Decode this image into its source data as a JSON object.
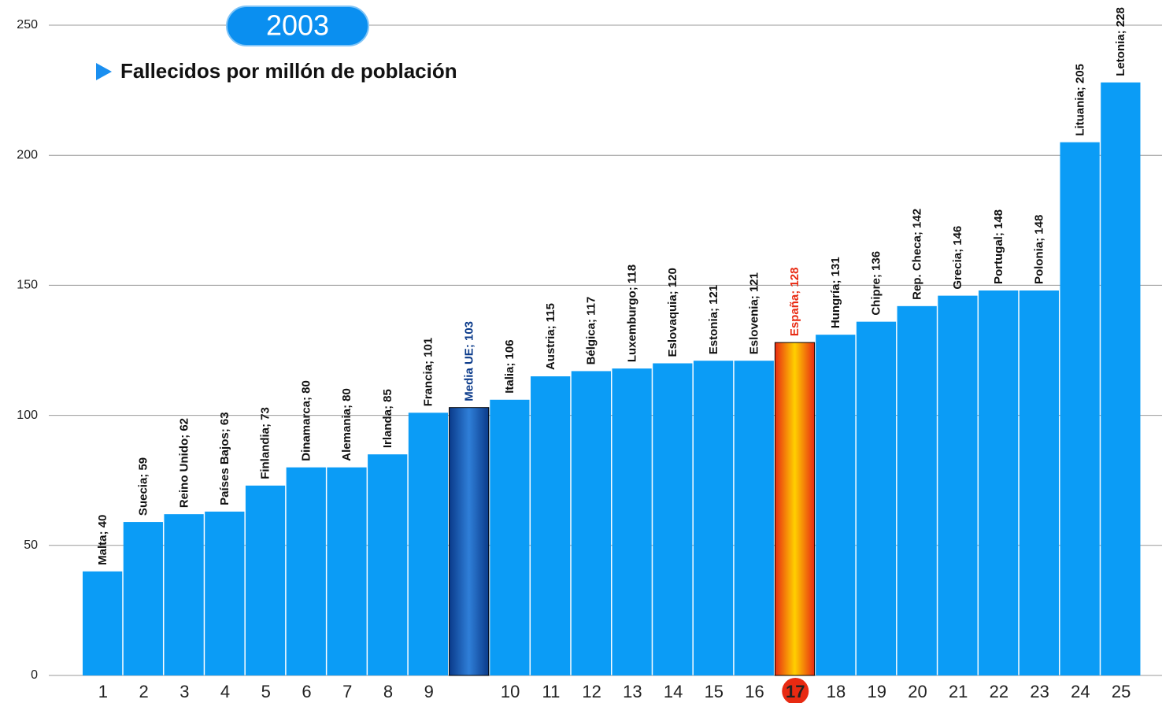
{
  "chart_data": {
    "type": "bar",
    "title": "2003",
    "subtitle": "Fallecidos por millón de población",
    "categories": [
      "1",
      "2",
      "3",
      "4",
      "5",
      "6",
      "7",
      "8",
      "9",
      null,
      "10",
      "11",
      "12",
      "13",
      "14",
      "15",
      "16",
      "17",
      "18",
      "19",
      "20",
      "21",
      "22",
      "23",
      "24",
      "25"
    ],
    "values": [
      40,
      59,
      62,
      63,
      73,
      80,
      80,
      85,
      101,
      103,
      106,
      115,
      117,
      118,
      120,
      121,
      121,
      128,
      131,
      136,
      142,
      146,
      148,
      148,
      205,
      228
    ],
    "value_labels": [
      "Malta; 40",
      "Suecia; 59",
      "Reino Unido; 62",
      "Países Bajos; 63",
      "Finlandia; 73",
      "Dinamarca; 80",
      "Alemania; 80",
      "Irlanda; 85",
      "Francia; 101",
      "Media UE; 103",
      "Italia; 106",
      "Austria; 115",
      "Bélgica; 117",
      "Luxemburgo; 118",
      "Eslovaquia; 120",
      "Estonia; 121",
      "Eslovenia; 121",
      "España; 128",
      "Hungría; 131",
      "Chipre; 136",
      "Rep. Checa; 142",
      "Grecia; 146",
      "Portugal; 148",
      "Polonia; 148",
      "Lituania; 205",
      "Letonia; 228"
    ],
    "color": "#0b9cf6",
    "colors": [
      "#0b9cf6",
      "#0b9cf6",
      "#0b9cf6",
      "#0b9cf6",
      "#0b9cf6",
      "#0b9cf6",
      "#0b9cf6",
      "#0b9cf6",
      "#0b9cf6",
      "#0a3a8a",
      "#0b9cf6",
      "#0b9cf6",
      "#0b9cf6",
      "#0b9cf6",
      "#0b9cf6",
      "#0b9cf6",
      "#0b9cf6",
      "#e82a12",
      "#0b9cf6",
      "#0b9cf6",
      "#0b9cf6",
      "#0b9cf6",
      "#0b9cf6",
      "#0b9cf6",
      "#0b9cf6",
      "#0b9cf6"
    ],
    "ylim": [
      0,
      250
    ],
    "yticks": [
      0,
      50,
      100,
      150,
      200,
      250
    ],
    "grid": true
  }
}
